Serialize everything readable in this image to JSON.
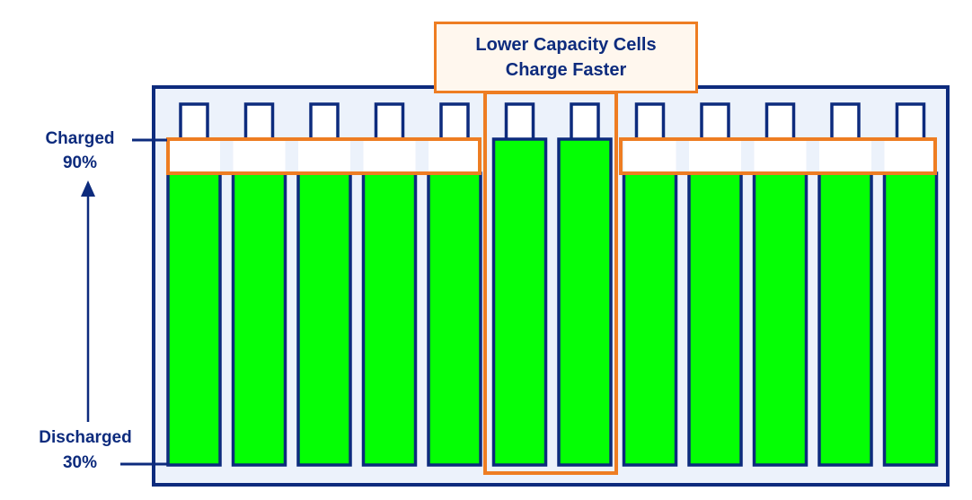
{
  "callout": {
    "line1": "Lower Capacity Cells",
    "line2": "Charge Faster"
  },
  "axis": {
    "top_label": "Charged",
    "top_value": "90%",
    "bottom_label": "Discharged",
    "bottom_value": "30%"
  },
  "colors": {
    "navy": "#0d2b7d",
    "green": "#04ff04",
    "orange": "#ee7d22",
    "pack_fill": "#ecf2fb",
    "callout_fill": "#fff7ee"
  },
  "cells": [
    {
      "group": "normal",
      "charge_level": "below-charged"
    },
    {
      "group": "normal",
      "charge_level": "below-charged"
    },
    {
      "group": "normal",
      "charge_level": "below-charged"
    },
    {
      "group": "normal",
      "charge_level": "below-charged"
    },
    {
      "group": "normal",
      "charge_level": "below-charged"
    },
    {
      "group": "low-capacity",
      "charge_level": "charged"
    },
    {
      "group": "low-capacity",
      "charge_level": "charged"
    },
    {
      "group": "normal",
      "charge_level": "below-charged"
    },
    {
      "group": "normal",
      "charge_level": "below-charged"
    },
    {
      "group": "normal",
      "charge_level": "below-charged"
    },
    {
      "group": "normal",
      "charge_level": "below-charged"
    },
    {
      "group": "normal",
      "charge_level": "below-charged"
    }
  ]
}
